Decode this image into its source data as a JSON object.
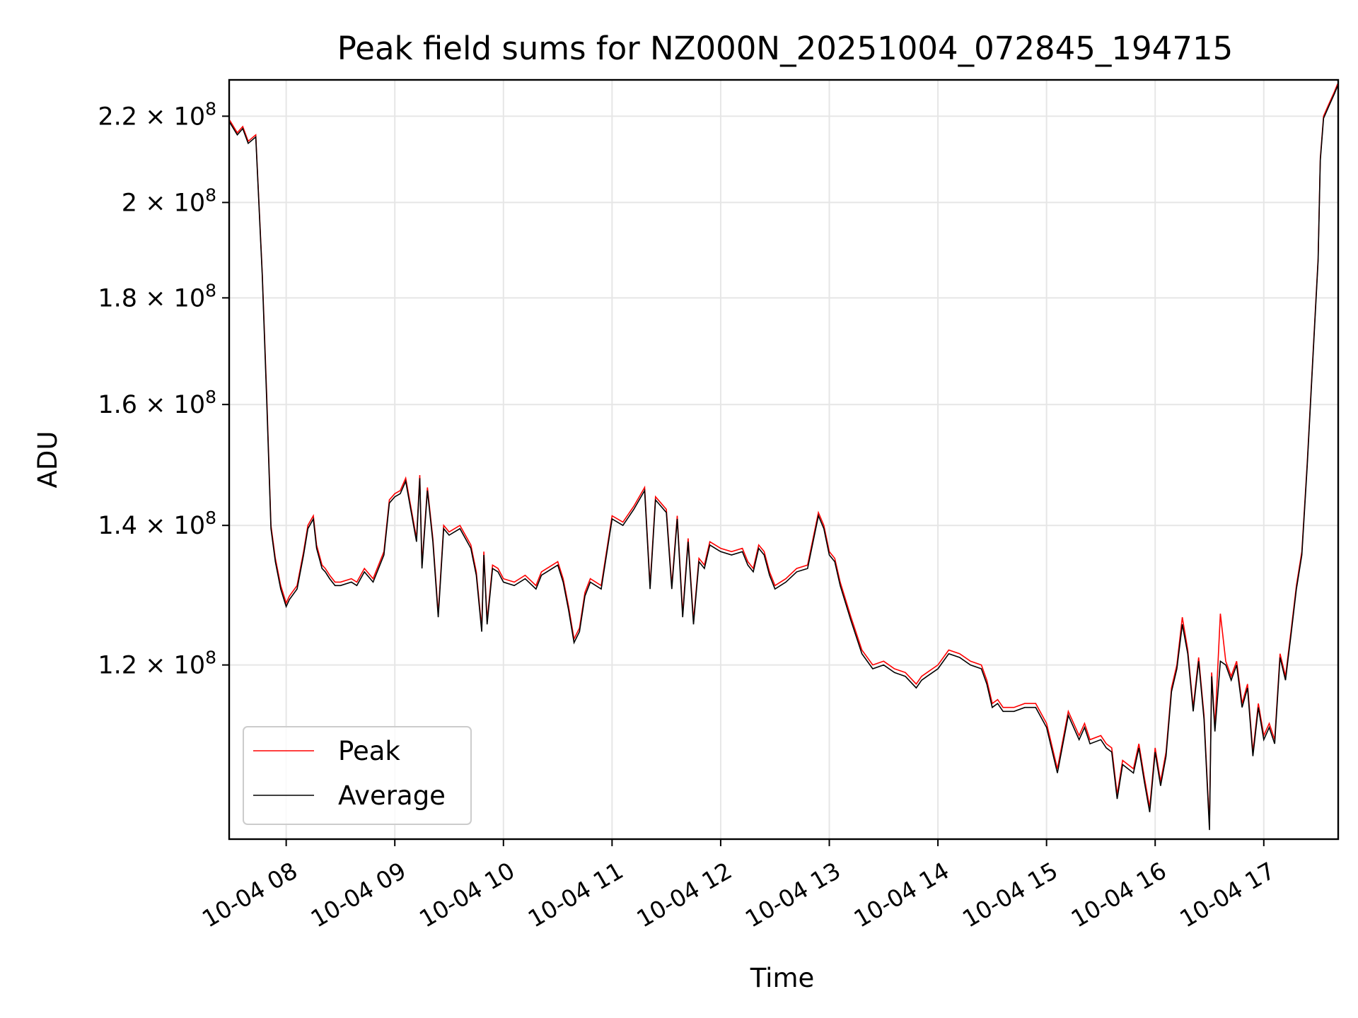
{
  "chart_data": {
    "type": "line",
    "title": "Peak field sums for NZ000N_20251004_072845_194715",
    "xlabel": "Time",
    "ylabel": "ADU",
    "y_scale": "log",
    "ylim": [
      99000000,
      229000000
    ],
    "xlim_hours": [
      7.475,
      17.685
    ],
    "grid": true,
    "legend_position": "lower-left",
    "colors": {
      "Peak": "#ff0000",
      "Average": "#000000",
      "grid": "#e6e6e6"
    },
    "x_ticks": [
      {
        "value": 8,
        "label": "10-04 08"
      },
      {
        "value": 9,
        "label": "10-04 09"
      },
      {
        "value": 10,
        "label": "10-04 10"
      },
      {
        "value": 11,
        "label": "10-04 11"
      },
      {
        "value": 12,
        "label": "10-04 12"
      },
      {
        "value": 13,
        "label": "10-04 13"
      },
      {
        "value": 14,
        "label": "10-04 14"
      },
      {
        "value": 15,
        "label": "10-04 15"
      },
      {
        "value": 16,
        "label": "10-04 16"
      },
      {
        "value": 17,
        "label": "10-04 17"
      }
    ],
    "y_ticks": [
      {
        "value": 120000000,
        "mantissa": "1.2",
        "exponent": "8"
      },
      {
        "value": 140000000,
        "mantissa": "1.4",
        "exponent": "8"
      },
      {
        "value": 160000000,
        "mantissa": "1.6",
        "exponent": "8"
      },
      {
        "value": 180000000,
        "mantissa": "1.8",
        "exponent": "8"
      },
      {
        "value": 200000000,
        "mantissa": "2",
        "exponent": "8"
      },
      {
        "value": 220000000,
        "mantissa": "2.2",
        "exponent": "8"
      }
    ],
    "tick_times_symbol": "×",
    "tick_base": "10",
    "x_hours": [
      7.48,
      7.55,
      7.6,
      7.65,
      7.72,
      7.78,
      7.82,
      7.86,
      7.9,
      7.95,
      8.0,
      8.03,
      8.1,
      8.16,
      8.2,
      8.25,
      8.28,
      8.33,
      8.36,
      8.4,
      8.45,
      8.5,
      8.6,
      8.65,
      8.72,
      8.8,
      8.9,
      8.95,
      9.0,
      9.05,
      9.1,
      9.2,
      9.23,
      9.25,
      9.3,
      9.35,
      9.4,
      9.45,
      9.5,
      9.6,
      9.7,
      9.75,
      9.8,
      9.82,
      9.85,
      9.9,
      9.95,
      10.0,
      10.1,
      10.2,
      10.3,
      10.35,
      10.4,
      10.45,
      10.5,
      10.55,
      10.6,
      10.65,
      10.7,
      10.75,
      10.8,
      10.9,
      11.0,
      11.1,
      11.2,
      11.3,
      11.35,
      11.4,
      11.5,
      11.55,
      11.6,
      11.65,
      11.7,
      11.75,
      11.8,
      11.85,
      11.9,
      12.0,
      12.1,
      12.2,
      12.25,
      12.3,
      12.35,
      12.4,
      12.45,
      12.5,
      12.6,
      12.7,
      12.8,
      12.9,
      12.95,
      13.0,
      13.05,
      13.1,
      13.2,
      13.3,
      13.4,
      13.5,
      13.6,
      13.7,
      13.8,
      13.85,
      13.9,
      14.0,
      14.1,
      14.2,
      14.3,
      14.4,
      14.45,
      14.5,
      14.55,
      14.6,
      14.7,
      14.8,
      14.9,
      15.0,
      15.1,
      15.2,
      15.3,
      15.35,
      15.4,
      15.5,
      15.55,
      15.6,
      15.65,
      15.7,
      15.8,
      15.85,
      15.9,
      15.95,
      16.0,
      16.05,
      16.1,
      16.15,
      16.2,
      16.25,
      16.3,
      16.35,
      16.4,
      16.45,
      16.5,
      16.52,
      16.55,
      16.6,
      16.65,
      16.7,
      16.75,
      16.8,
      16.85,
      16.9,
      16.95,
      17.0,
      17.05,
      17.1,
      17.15,
      17.2,
      17.25,
      17.3,
      17.35,
      17.4,
      17.45,
      17.5,
      17.52,
      17.55,
      17.6,
      17.65,
      17.68
    ],
    "series": [
      {
        "name": "Peak",
        "values": [
          219000000,
          216000000,
          217500000,
          214000000,
          215500000,
          185000000,
          162000000,
          140000000,
          135000000,
          131000000,
          128500000,
          129500000,
          131000000,
          136000000,
          140000000,
          141500000,
          137000000,
          134000000,
          133500000,
          132500000,
          131500000,
          131500000,
          132000000,
          131500000,
          133500000,
          132000000,
          136000000,
          144000000,
          145000000,
          145500000,
          147500000,
          138000000,
          148000000,
          134000000,
          146000000,
          138000000,
          127000000,
          140000000,
          139000000,
          140000000,
          137000000,
          133000000,
          125000000,
          136000000,
          126000000,
          134000000,
          133500000,
          132000000,
          131500000,
          132500000,
          131000000,
          133000000,
          133500000,
          134000000,
          134500000,
          132000000,
          128000000,
          123500000,
          125000000,
          130000000,
          132000000,
          131000000,
          141500000,
          140500000,
          143000000,
          146000000,
          131000000,
          144500000,
          142500000,
          131000000,
          141500000,
          127000000,
          138000000,
          126000000,
          135000000,
          134000000,
          137500000,
          136500000,
          136000000,
          136500000,
          134500000,
          133500000,
          137000000,
          136000000,
          133000000,
          131000000,
          132000000,
          133500000,
          134000000,
          142000000,
          140000000,
          136000000,
          135000000,
          131500000,
          126500000,
          122000000,
          120000000,
          120500000,
          119500000,
          119000000,
          117500000,
          118500000,
          119000000,
          120000000,
          122000000,
          121500000,
          120500000,
          120000000,
          118000000,
          115000000,
          115500000,
          114500000,
          114500000,
          115000000,
          115000000,
          112500000,
          107000000,
          114000000,
          111000000,
          112500000,
          110500000,
          111000000,
          110000000,
          109500000,
          104000000,
          108000000,
          107000000,
          110000000,
          106000000,
          102500000,
          109500000,
          105500000,
          109000000,
          117000000,
          120000000,
          126500000,
          122000000,
          114500000,
          121000000,
          113500000,
          100500000,
          119000000,
          112000000,
          127000000,
          120500000,
          118500000,
          120500000,
          115000000,
          117500000,
          109000000,
          115000000,
          111000000,
          112500000,
          110500000,
          121500000,
          118500000,
          124500000,
          131000000,
          136000000,
          150000000,
          168000000,
          188000000,
          210000000,
          220000000,
          223000000,
          226000000,
          228000000
        ]
      },
      {
        "name": "Average",
        "values": [
          218500000,
          215500000,
          217000000,
          213500000,
          215000000,
          184500000,
          161000000,
          139500000,
          134500000,
          130500000,
          128000000,
          129000000,
          130500000,
          135500000,
          139500000,
          141000000,
          136500000,
          133500000,
          133000000,
          132000000,
          131000000,
          131000000,
          131500000,
          131000000,
          133000000,
          131500000,
          135500000,
          143500000,
          144500000,
          145000000,
          147000000,
          137500000,
          147500000,
          133500000,
          145500000,
          137500000,
          126500000,
          139500000,
          138500000,
          139500000,
          136500000,
          132500000,
          124500000,
          135500000,
          125500000,
          133500000,
          133000000,
          131500000,
          131000000,
          132000000,
          130500000,
          132500000,
          133000000,
          133500000,
          134000000,
          131500000,
          127500000,
          123000000,
          124500000,
          129500000,
          131500000,
          130500000,
          141000000,
          140000000,
          142500000,
          145500000,
          130500000,
          144000000,
          142000000,
          130500000,
          141000000,
          126500000,
          137500000,
          125500000,
          134500000,
          133500000,
          137000000,
          136000000,
          135500000,
          136000000,
          134000000,
          133000000,
          136500000,
          135500000,
          132500000,
          130500000,
          131500000,
          133000000,
          133500000,
          141500000,
          139500000,
          135500000,
          134500000,
          131000000,
          126000000,
          121500000,
          119500000,
          120000000,
          119000000,
          118500000,
          117000000,
          118000000,
          118500000,
          119500000,
          121500000,
          121000000,
          120000000,
          119500000,
          117500000,
          114500000,
          115000000,
          114000000,
          114000000,
          114500000,
          114500000,
          112000000,
          106500000,
          113500000,
          110500000,
          112000000,
          110000000,
          110500000,
          109500000,
          109000000,
          103500000,
          107500000,
          106500000,
          109500000,
          105500000,
          102000000,
          109000000,
          105000000,
          108500000,
          116500000,
          119500000,
          125500000,
          121500000,
          114000000,
          120500000,
          113000000,
          100000000,
          118500000,
          111500000,
          120500000,
          120000000,
          118000000,
          120000000,
          114500000,
          117000000,
          108500000,
          114500000,
          110500000,
          112000000,
          110000000,
          121000000,
          118000000,
          124000000,
          130500000,
          135500000,
          149500000,
          167500000,
          187500000,
          209500000,
          219500000,
          222500000,
          225500000,
          227500000
        ]
      }
    ]
  }
}
